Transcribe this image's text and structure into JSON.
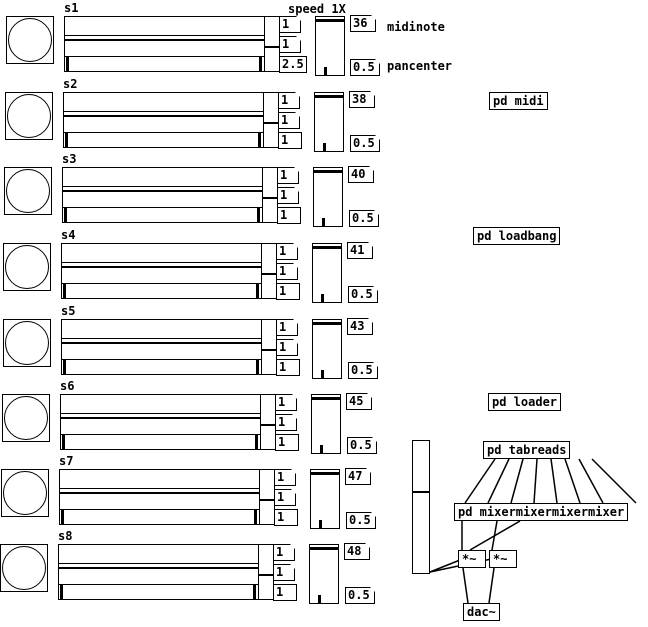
{
  "header": {
    "speed_label": "speed 1X",
    "midinote_label": "midinote",
    "pancenter_label": "pancenter"
  },
  "samplers": [
    {
      "name": "s1",
      "values": [
        "1",
        "1",
        "2.5"
      ],
      "midinote": "36",
      "pan": "0.5"
    },
    {
      "name": "s2",
      "values": [
        "1",
        "1",
        "1"
      ],
      "midinote": "38",
      "pan": "0.5"
    },
    {
      "name": "s3",
      "values": [
        "1",
        "1",
        "1"
      ],
      "midinote": "40",
      "pan": "0.5"
    },
    {
      "name": "s4",
      "values": [
        "1",
        "1",
        "1"
      ],
      "midinote": "41",
      "pan": "0.5"
    },
    {
      "name": "s5",
      "values": [
        "1",
        "1",
        "1"
      ],
      "midinote": "43",
      "pan": "0.5"
    },
    {
      "name": "s6",
      "values": [
        "1",
        "1",
        "1"
      ],
      "midinote": "45",
      "pan": "0.5"
    },
    {
      "name": "s7",
      "values": [
        "1",
        "1",
        "1"
      ],
      "midinote": "47",
      "pan": "0.5"
    },
    {
      "name": "s8",
      "values": [
        "1",
        "1",
        "1"
      ],
      "midinote": "48",
      "pan": "0.5"
    }
  ],
  "objects": {
    "pd_midi": "pd midi",
    "pd_loadbang": "pd loadbang",
    "pd_loader": "pd loader",
    "pd_tabreads": "pd tabreads",
    "pd_mixer": "pd mixermixermixermixer",
    "mult_left": "*~",
    "mult_right": "*~",
    "dac": "dac~"
  }
}
